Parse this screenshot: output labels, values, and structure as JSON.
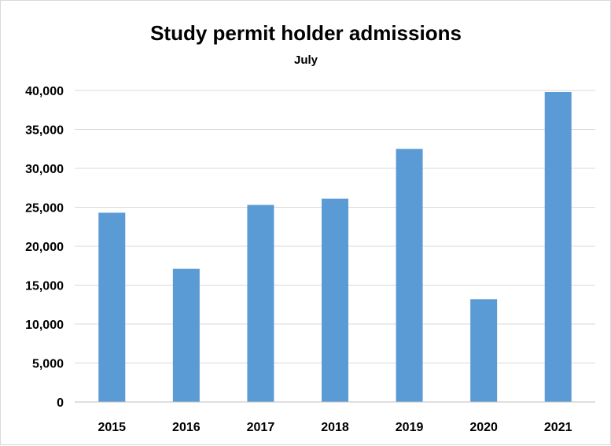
{
  "chart_data": {
    "type": "bar",
    "title": "Study permit holder admissions",
    "subtitle": "July",
    "categories": [
      "2015",
      "2016",
      "2017",
      "2018",
      "2019",
      "2020",
      "2021"
    ],
    "values": [
      24300,
      17100,
      25300,
      26100,
      32500,
      13200,
      39800
    ],
    "ylim": [
      0,
      40000
    ],
    "yticks": [
      0,
      5000,
      10000,
      15000,
      20000,
      25000,
      30000,
      35000,
      40000
    ],
    "ytick_labels": [
      "0",
      "5,000",
      "10,000",
      "15,000",
      "20,000",
      "25,000",
      "30,000",
      "35,000",
      "40,000"
    ],
    "grid": true,
    "legend": "none",
    "bar_color": "#5b9bd5"
  }
}
